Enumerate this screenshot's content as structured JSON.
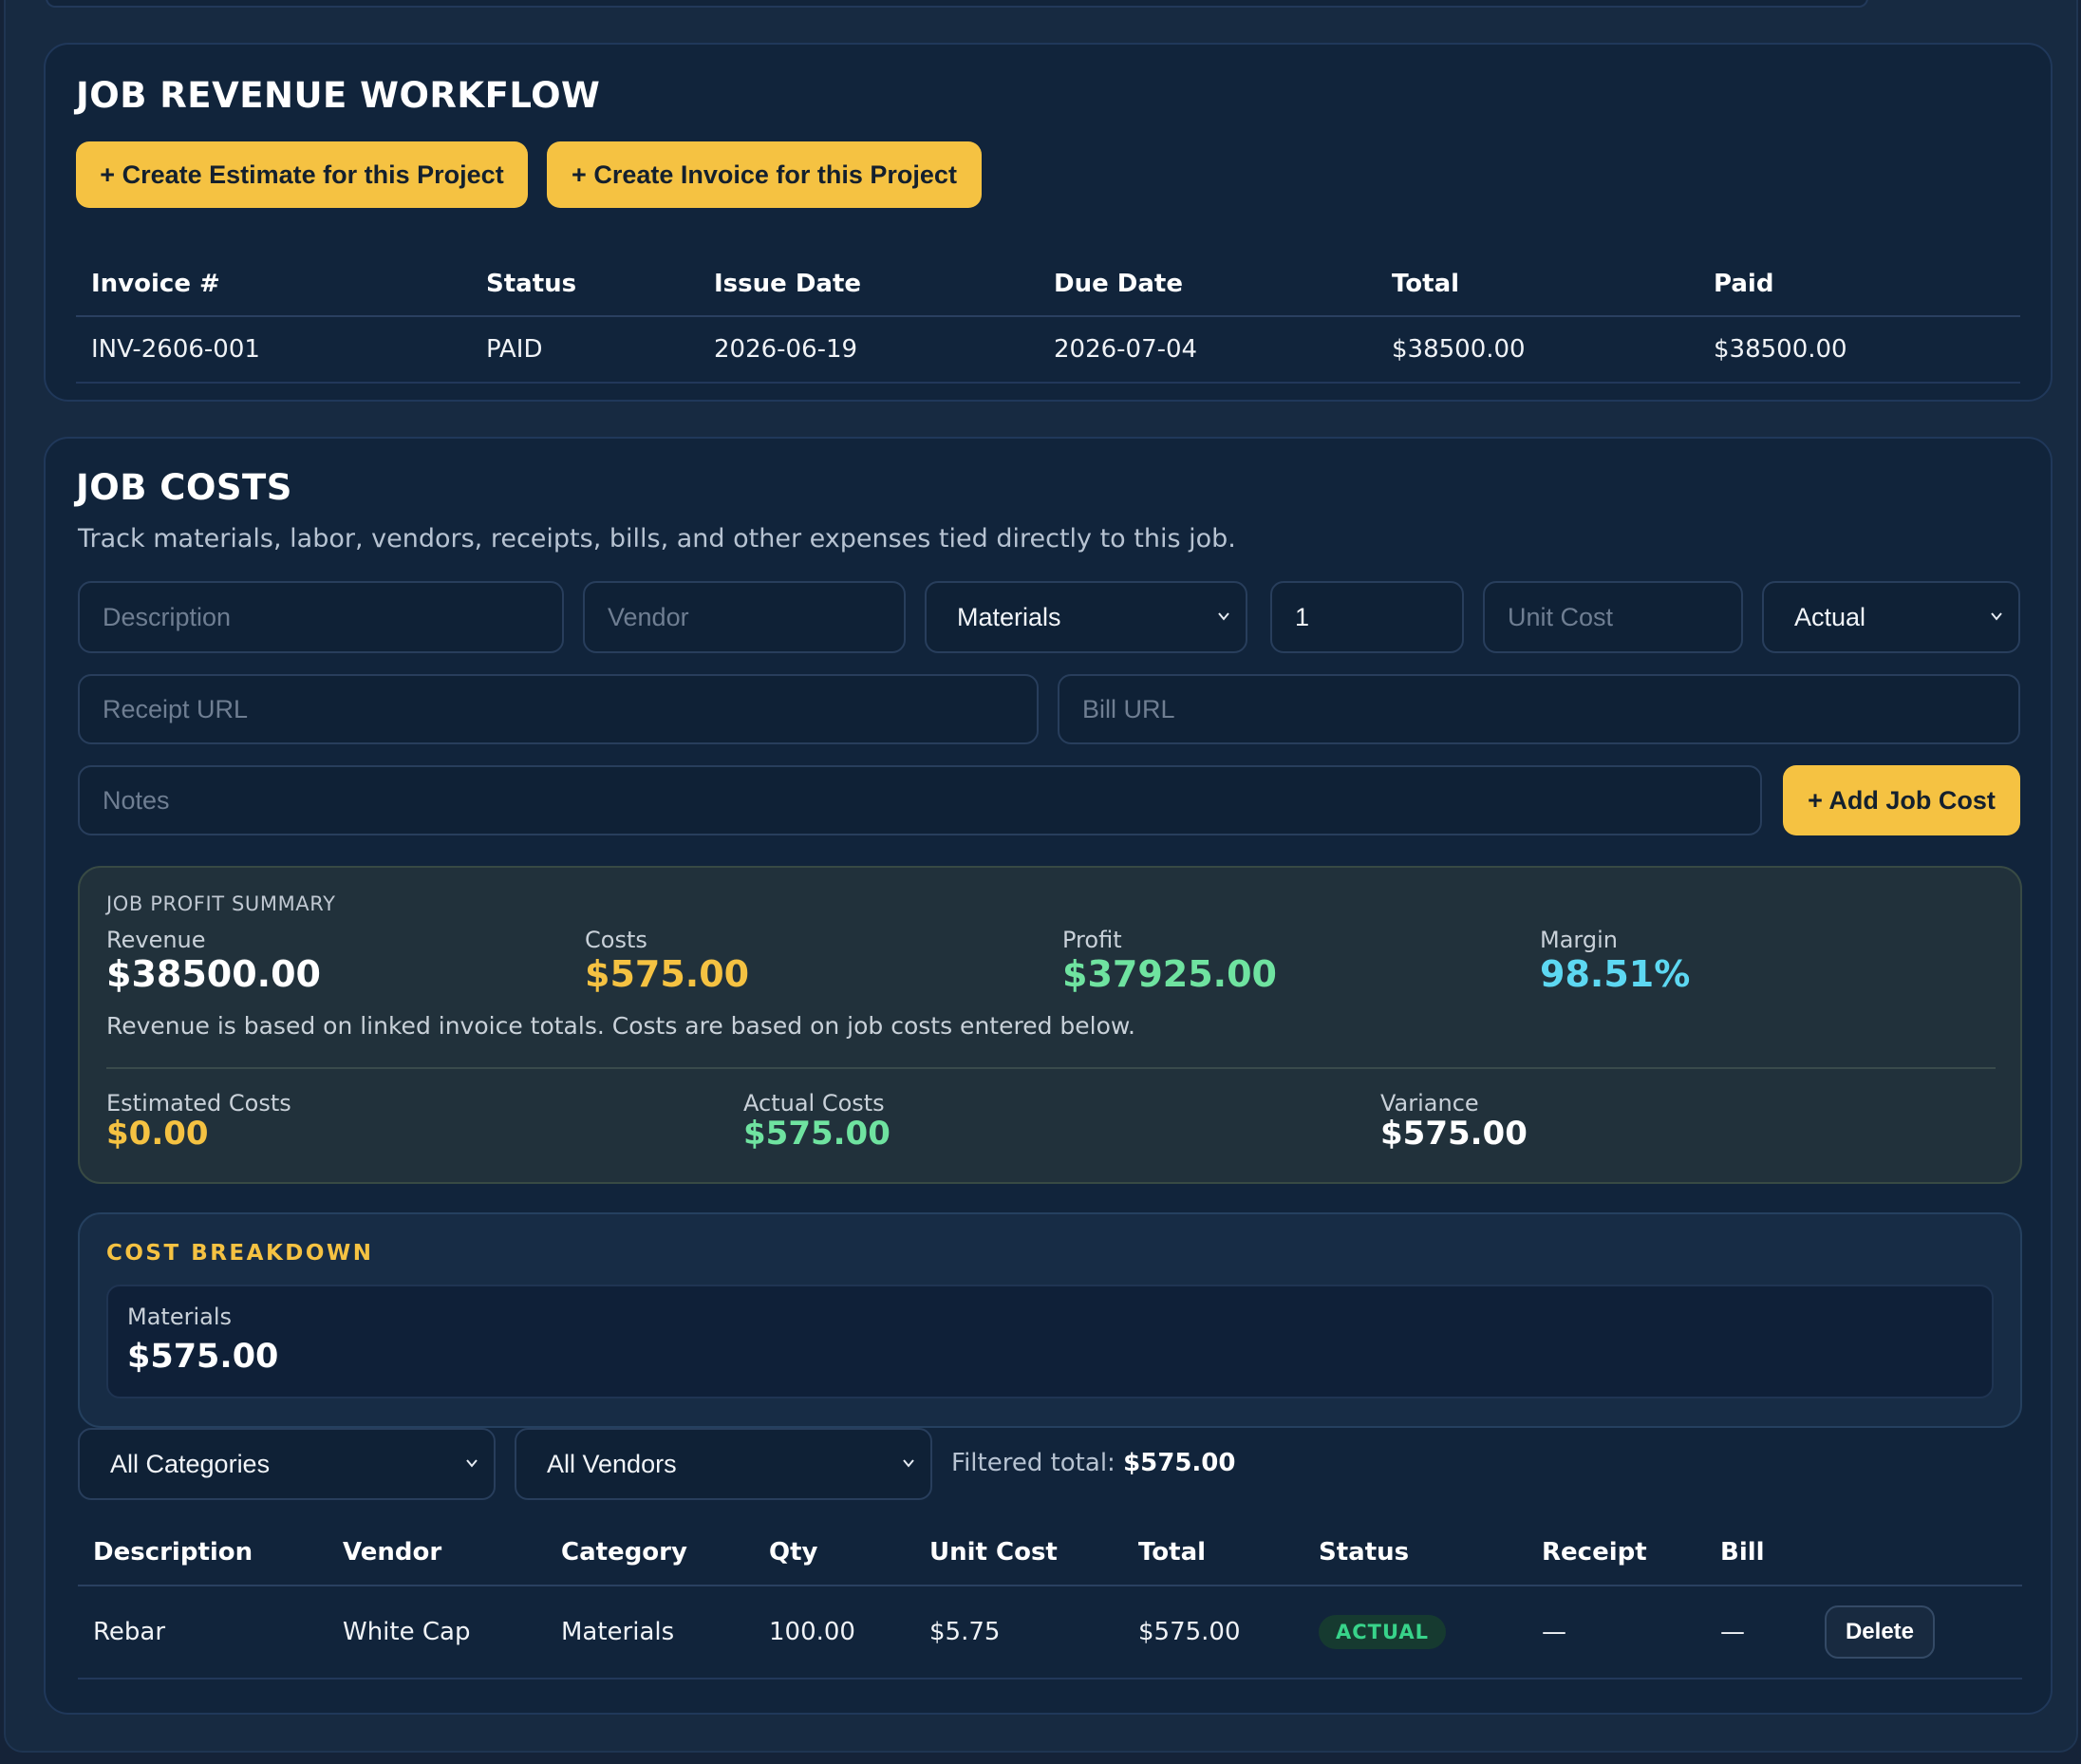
{
  "revenue": {
    "title": "JOB REVENUE WORKFLOW",
    "create_estimate_label": "+ Create Estimate for this Project",
    "create_invoice_label": "+ Create Invoice for this Project",
    "columns": [
      "Invoice #",
      "Status",
      "Issue Date",
      "Due Date",
      "Total",
      "Paid"
    ],
    "rows": [
      [
        "INV-2606-001",
        "PAID",
        "2026-06-19",
        "2026-07-04",
        "$38500.00",
        "$38500.00"
      ]
    ]
  },
  "costs": {
    "title": "JOB COSTS",
    "subtitle": "Track materials, labor, vendors, receipts, bills, and other expenses tied directly to this job.",
    "form": {
      "description_placeholder": "Description",
      "vendor_placeholder": "Vendor",
      "category_value": "Materials",
      "qty_value": "1",
      "unit_cost_placeholder": "Unit Cost",
      "type_value": "Actual",
      "receipt_placeholder": "Receipt URL",
      "bill_placeholder": "Bill URL",
      "notes_placeholder": "Notes",
      "add_label": "+ Add Job Cost"
    },
    "summary": {
      "heading": "JOB PROFIT SUMMARY",
      "revenue_label": "Revenue",
      "revenue_value": "$38500.00",
      "costs_label": "Costs",
      "costs_value": "$575.00",
      "profit_label": "Profit",
      "profit_value": "$37925.00",
      "margin_label": "Margin",
      "margin_value": "98.51%",
      "note": "Revenue is based on linked invoice totals. Costs are based on job costs entered below.",
      "estimated_label": "Estimated Costs",
      "estimated_value": "$0.00",
      "actual_label": "Actual Costs",
      "actual_value": "$575.00",
      "variance_label": "Variance",
      "variance_value": "$575.00",
      "colors": {
        "white": "#ffffff",
        "yellow": "#f5c242",
        "green": "#6fe3a0",
        "cyan": "#5dd8f2"
      }
    },
    "breakdown": {
      "heading": "COST BREAKDOWN",
      "category": "Materials",
      "amount": "$575.00"
    },
    "filters": {
      "category_value": "All Categories",
      "vendor_value": "All Vendors",
      "total_label": "Filtered total:",
      "total_value": "$575.00"
    },
    "table": {
      "columns": [
        "Description",
        "Vendor",
        "Category",
        "Qty",
        "Unit Cost",
        "Total",
        "Status",
        "Receipt",
        "Bill"
      ],
      "rows": [
        {
          "description": "Rebar",
          "vendor": "White Cap",
          "category": "Materials",
          "qty": "100.00",
          "unit_cost": "$5.75",
          "total": "$575.00",
          "status": "ACTUAL",
          "receipt": "—",
          "bill": "—",
          "delete_label": "Delete"
        }
      ]
    }
  }
}
